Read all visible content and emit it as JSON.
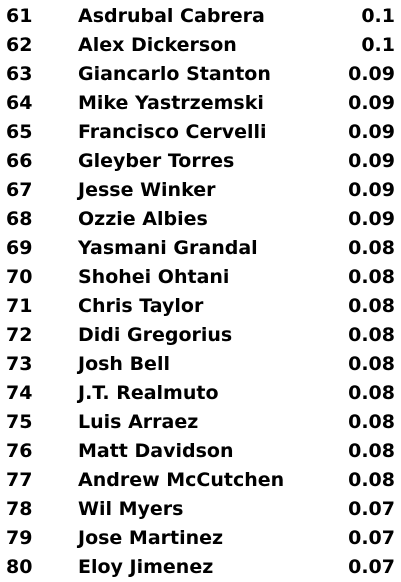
{
  "rows": [
    {
      "rank": "61",
      "name": "Asdrubal Cabrera",
      "value": "0.1"
    },
    {
      "rank": "62",
      "name": "Alex Dickerson",
      "value": "0.1"
    },
    {
      "rank": "63",
      "name": "Giancarlo Stanton",
      "value": "0.09"
    },
    {
      "rank": "64",
      "name": "Mike Yastrzemski",
      "value": "0.09"
    },
    {
      "rank": "65",
      "name": "Francisco Cervelli",
      "value": "0.09"
    },
    {
      "rank": "66",
      "name": "Gleyber Torres",
      "value": "0.09"
    },
    {
      "rank": "67",
      "name": "Jesse Winker",
      "value": "0.09"
    },
    {
      "rank": "68",
      "name": "Ozzie Albies",
      "value": "0.09"
    },
    {
      "rank": "69",
      "name": "Yasmani Grandal",
      "value": "0.08"
    },
    {
      "rank": "70",
      "name": "Shohei Ohtani",
      "value": "0.08"
    },
    {
      "rank": "71",
      "name": "Chris Taylor",
      "value": "0.08"
    },
    {
      "rank": "72",
      "name": "Didi Gregorius",
      "value": "0.08"
    },
    {
      "rank": "73",
      "name": "Josh Bell",
      "value": "0.08"
    },
    {
      "rank": "74",
      "name": "J.T. Realmuto",
      "value": "0.08"
    },
    {
      "rank": "75",
      "name": "Luis Arraez",
      "value": "0.08"
    },
    {
      "rank": "76",
      "name": "Matt Davidson",
      "value": "0.08"
    },
    {
      "rank": "77",
      "name": "Andrew McCutchen",
      "value": "0.08"
    },
    {
      "rank": "78",
      "name": "Wil Myers",
      "value": "0.07"
    },
    {
      "rank": "79",
      "name": "Jose Martinez",
      "value": "0.07"
    },
    {
      "rank": "80",
      "name": "Eloy Jimenez",
      "value": "0.07"
    }
  ]
}
